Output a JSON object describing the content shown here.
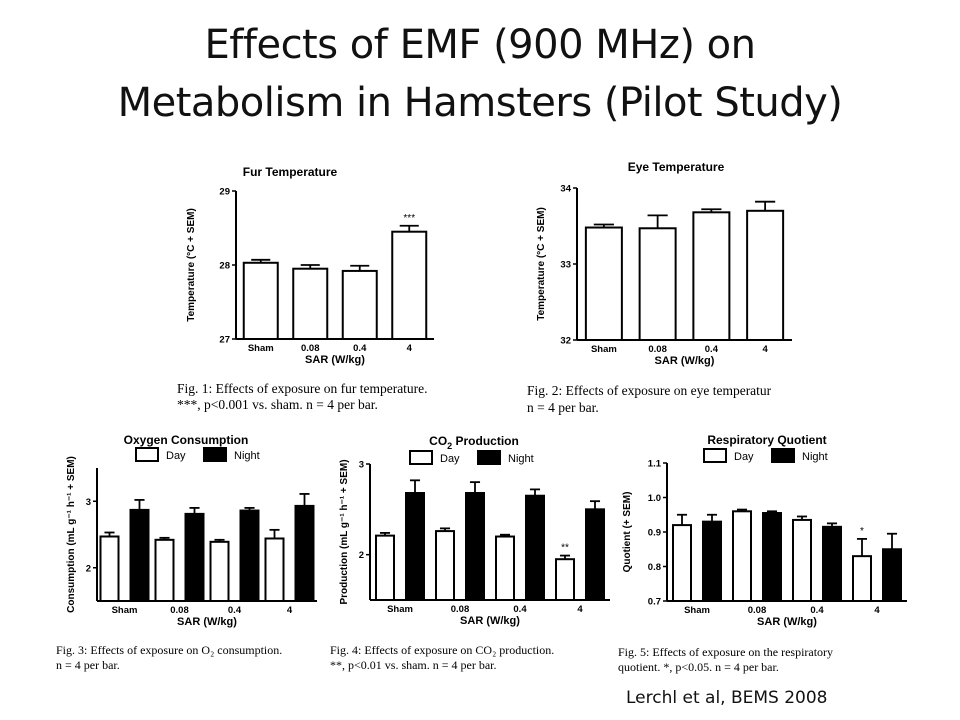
{
  "slide": {
    "title_line1": "Effects of EMF (900 MHz) on",
    "title_line2": "Metabolism in Hamsters (Pilot Study)",
    "credit": "Lerchl et al, BEMS 2008"
  },
  "chart_data": [
    {
      "id": "fur",
      "type": "bar",
      "title": "Fur Temperature",
      "xlabel": "SAR (W/kg)",
      "ylabel": "Temperature (°C + SEM)",
      "categories": [
        "Sham",
        "0.08",
        "0.4",
        "4"
      ],
      "ylim": [
        27,
        29
      ],
      "yticks": [
        "27",
        "28",
        "29"
      ],
      "series": [
        {
          "color": "#ffffff",
          "values": [
            28.03,
            27.95,
            27.92,
            28.45
          ],
          "errors": [
            0.04,
            0.05,
            0.07,
            0.08
          ]
        }
      ],
      "annotations": [
        {
          "category": "4",
          "text": "***"
        }
      ],
      "caption_lines": [
        "Fig. 1: Effects of exposure on fur temperature.",
        "***, p<0.001 vs. sham. n = 4 per bar."
      ]
    },
    {
      "id": "eye",
      "type": "bar",
      "title": "Eye Temperature",
      "xlabel": "SAR (W/kg)",
      "ylabel": "Temperature (°C + SEM)",
      "categories": [
        "Sham",
        "0.08",
        "0.4",
        "4"
      ],
      "ylim": [
        32,
        34
      ],
      "yticks": [
        "32",
        "33",
        "34"
      ],
      "series": [
        {
          "color": "#ffffff",
          "values": [
            33.48,
            33.47,
            33.68,
            33.7
          ],
          "errors": [
            0.04,
            0.17,
            0.04,
            0.12
          ]
        }
      ],
      "annotations": [],
      "caption_lines": [
        "Fig. 2: Effects of exposure on eye temperatur",
        "n = 4 per bar."
      ]
    },
    {
      "id": "o2",
      "type": "bar",
      "title": "Oxygen Consumption",
      "xlabel": "SAR (W/kg)",
      "ylabel": "Consumption (mL g⁻¹ h⁻¹ + SEM)",
      "categories": [
        "Sham",
        "0.08",
        "0.4",
        "4"
      ],
      "ylim": [
        1.5,
        3.5
      ],
      "yticks": [
        "2",
        "3"
      ],
      "legend": [
        "Day",
        "Night"
      ],
      "series": [
        {
          "name": "Day",
          "color": "#ffffff",
          "values": [
            2.47,
            2.42,
            2.39,
            2.44
          ],
          "errors": [
            0.06,
            0.03,
            0.03,
            0.13
          ]
        },
        {
          "name": "Night",
          "color": "#000000",
          "values": [
            2.87,
            2.81,
            2.86,
            2.93
          ],
          "errors": [
            0.15,
            0.09,
            0.04,
            0.18
          ]
        }
      ],
      "annotations": [],
      "caption_lines": [
        "Fig. 3: Effects of exposure on O₂ consumption.",
        "n = 4 per bar."
      ]
    },
    {
      "id": "co2",
      "type": "bar",
      "title": "CO₂ Production",
      "xlabel": "SAR (W/kg)",
      "ylabel": "Production (mL g⁻¹ h⁻¹ + SEM)",
      "categories": [
        "Sham",
        "0.08",
        "0.4",
        "4"
      ],
      "ylim": [
        1.5,
        3.0
      ],
      "yticks": [
        "2",
        "3"
      ],
      "legend": [
        "Day",
        "Night"
      ],
      "series": [
        {
          "name": "Day",
          "color": "#ffffff",
          "values": [
            2.21,
            2.26,
            2.2,
            1.95
          ],
          "errors": [
            0.03,
            0.03,
            0.02,
            0.04
          ]
        },
        {
          "name": "Night",
          "color": "#000000",
          "values": [
            2.68,
            2.68,
            2.65,
            2.5
          ],
          "errors": [
            0.14,
            0.12,
            0.07,
            0.09
          ]
        }
      ],
      "annotations": [
        {
          "category": "4",
          "text": "**"
        }
      ],
      "caption_lines": [
        "Fig. 4: Effects of exposure on CO₂ production.",
        "**, p<0.01 vs. sham. n = 4 per bar."
      ]
    },
    {
      "id": "rq",
      "type": "bar",
      "title": "Respiratory Quotient",
      "xlabel": "SAR (W/kg)",
      "ylabel": "Quotient (+ SEM)",
      "categories": [
        "Sham",
        "0.08",
        "0.4",
        "4"
      ],
      "ylim": [
        0.7,
        1.1
      ],
      "yticks": [
        "0.7",
        "0.8",
        "0.9",
        "1.0",
        "1.1"
      ],
      "legend": [
        "Day",
        "Night"
      ],
      "series": [
        {
          "name": "Day",
          "color": "#ffffff",
          "values": [
            0.92,
            0.96,
            0.935,
            0.83
          ],
          "errors": [
            0.03,
            0.005,
            0.01,
            0.05
          ]
        },
        {
          "name": "Night",
          "color": "#000000",
          "values": [
            0.93,
            0.955,
            0.915,
            0.85
          ],
          "errors": [
            0.02,
            0.005,
            0.01,
            0.045
          ]
        }
      ],
      "annotations": [
        {
          "category": "4",
          "text": "*"
        }
      ],
      "caption_lines": [
        "Fig. 5: Effects of exposure on the respiratory",
        "quotient. *, p<0.05. n = 4 per bar."
      ]
    }
  ]
}
